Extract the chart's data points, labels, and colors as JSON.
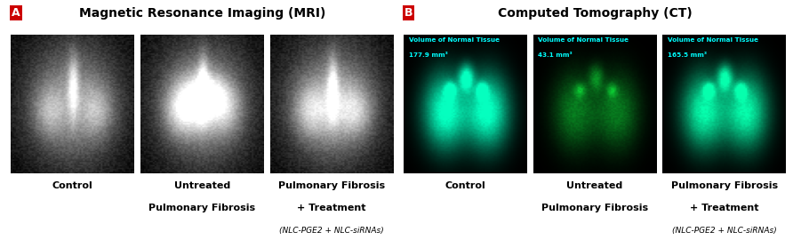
{
  "fig_width": 8.92,
  "fig_height": 2.79,
  "dpi": 100,
  "bg_color": "#ffffff",
  "panel_a": {
    "label": "A",
    "label_bg": "#cc0000",
    "label_color": "#ffffff",
    "title": "Magnetic Resonance Imaging (MRI)",
    "title_fontsize": 10,
    "title_fontweight": "bold",
    "sublabel_fontsize": 8,
    "sublabel_small_fontsize": 6.5,
    "label_groups": [
      [
        "Control"
      ],
      [
        "Untreated",
        "Pulmonary Fibrosis"
      ],
      [
        "Pulmonary Fibrosis",
        "+ Treatment",
        "(NLC-PGE2 + NLC-siRNAs)"
      ]
    ]
  },
  "panel_b": {
    "label": "B",
    "label_bg": "#cc0000",
    "label_color": "#ffffff",
    "title": "Computed Tomography (CT)",
    "title_fontsize": 10,
    "title_fontweight": "bold",
    "sublabel_fontsize": 8,
    "sublabel_small_fontsize": 6.5,
    "label_groups": [
      [
        "Control"
      ],
      [
        "Untreated",
        "Pulmonary Fibrosis"
      ],
      [
        "Pulmonary Fibrosis",
        "+ Treatment",
        "(NLC-PGE2 + NLC-siRNAs)"
      ]
    ],
    "overlay_texts": [
      [
        "Volume of Normal Tissue",
        "177.9 mm³"
      ],
      [
        "Volume of Normal Tissue",
        "43.1 mm³"
      ],
      [
        "Volume of Normal Tissue",
        "165.5 mm³"
      ]
    ],
    "overlay_color": "#00ffff"
  }
}
